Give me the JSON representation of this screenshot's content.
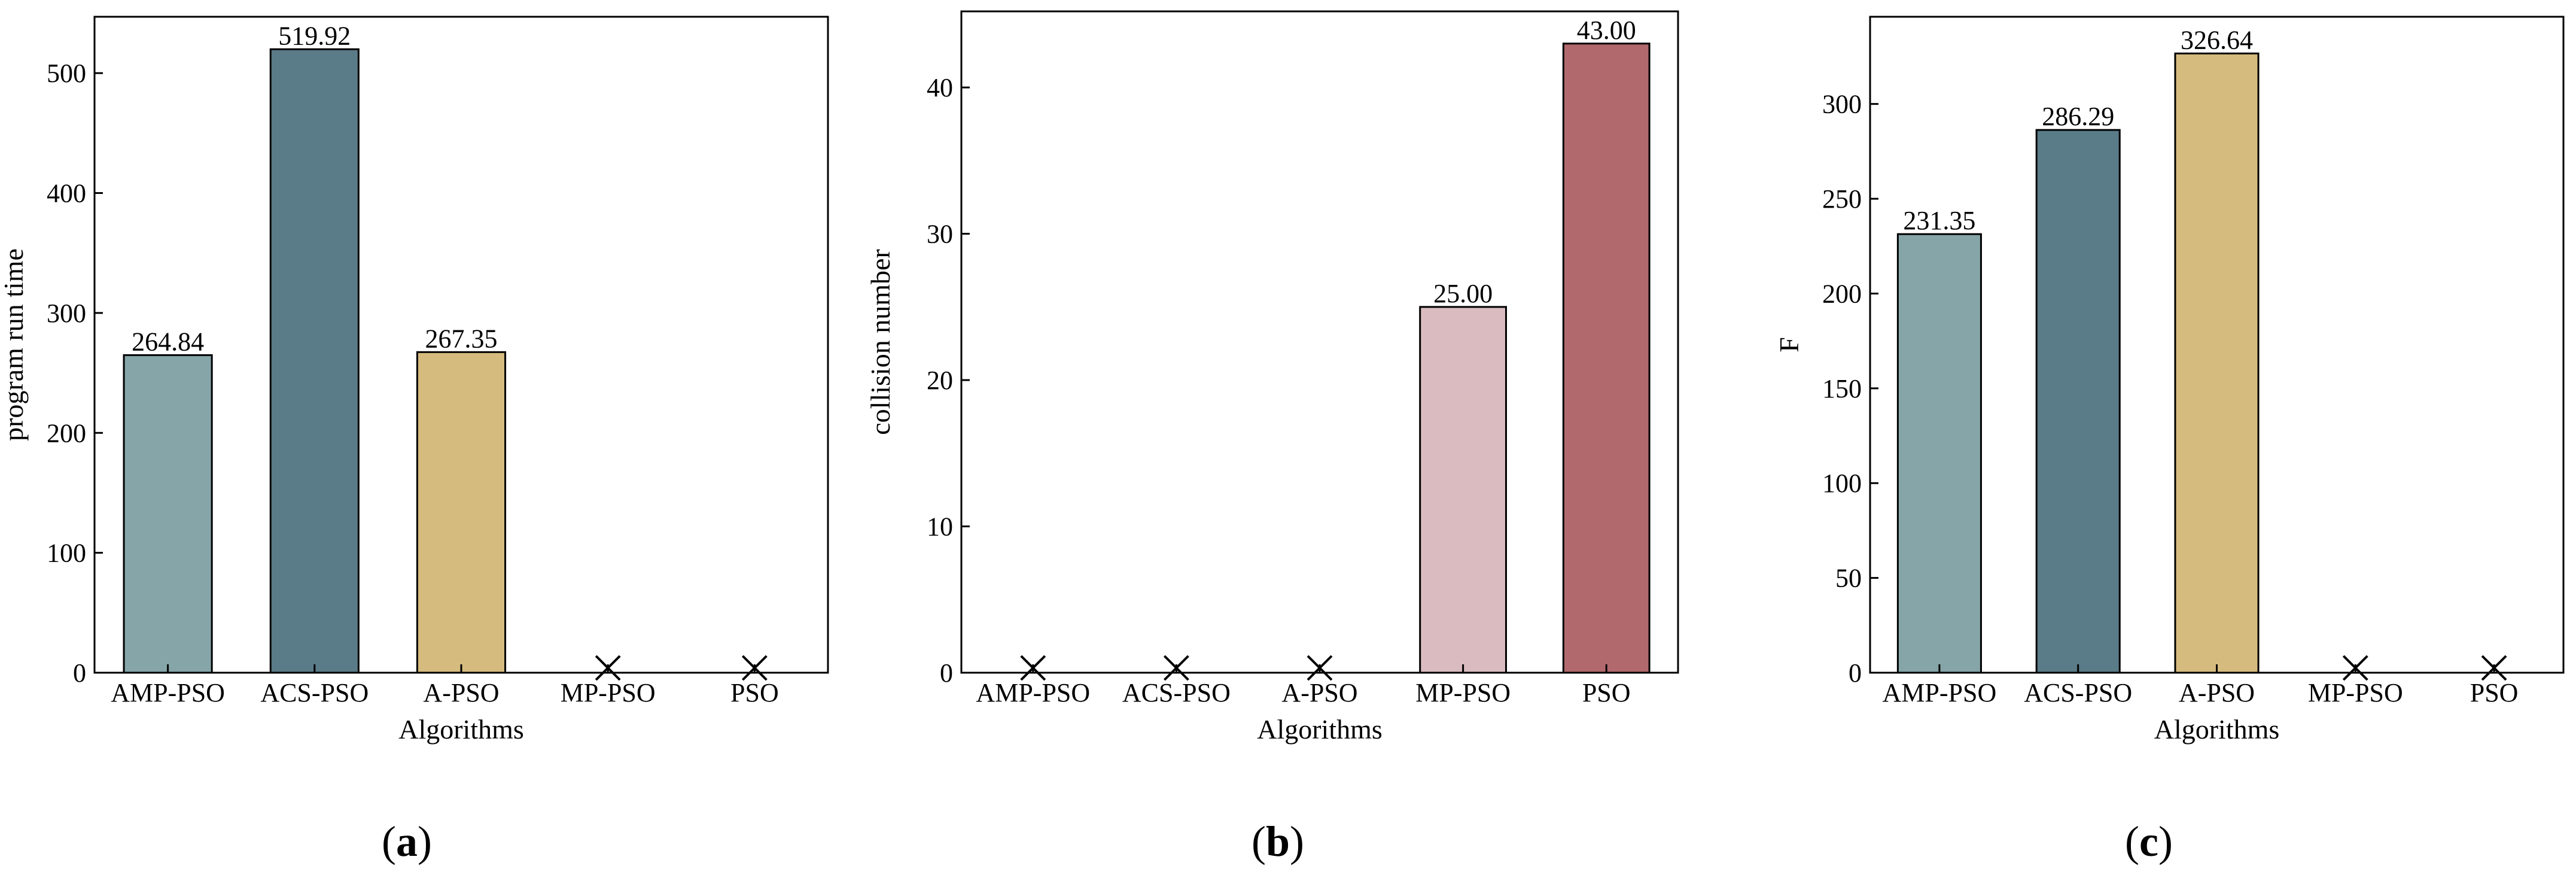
{
  "chart_data": [
    {
      "type": "bar",
      "panel_label": "a",
      "categories": [
        "AMP-PSO",
        "ACS-PSO",
        "A-PSO",
        "MP-PSO",
        "PSO"
      ],
      "values": [
        264.84,
        519.92,
        267.35,
        null,
        null
      ],
      "value_labels": [
        "264.84",
        "519.92",
        "267.35",
        "",
        ""
      ],
      "missing_marker": [
        false,
        false,
        false,
        true,
        true
      ],
      "colors": [
        "#85a5a8",
        "#5a7b88",
        "#d6bb7f",
        null,
        null
      ],
      "xlabel": "Algorithms",
      "ylabel": "program run time",
      "ylim": [
        0,
        547
      ],
      "yticks": [
        0,
        100,
        200,
        300,
        400,
        500
      ],
      "grid": false
    },
    {
      "type": "bar",
      "panel_label": "b",
      "categories": [
        "AMP-PSO",
        "ACS-PSO",
        "A-PSO",
        "MP-PSO",
        "PSO"
      ],
      "values": [
        null,
        null,
        null,
        25.0,
        43.0
      ],
      "value_labels": [
        "",
        "",
        "",
        "25.00",
        "43.00"
      ],
      "missing_marker": [
        true,
        true,
        true,
        false,
        false
      ],
      "colors": [
        null,
        null,
        null,
        "#d9bbc0",
        "#b2696d"
      ],
      "xlabel": "Algorithms",
      "ylabel": "collision number",
      "ylim": [
        0,
        45.2
      ],
      "yticks": [
        0,
        10,
        20,
        30,
        40
      ],
      "grid": false
    },
    {
      "type": "bar",
      "panel_label": "c",
      "categories": [
        "AMP-PSO",
        "ACS-PSO",
        "A-PSO",
        "MP-PSO",
        "PSO"
      ],
      "values": [
        231.35,
        286.29,
        326.64,
        null,
        null
      ],
      "value_labels": [
        "231.35",
        "286.29",
        "326.64",
        "",
        ""
      ],
      "missing_marker": [
        false,
        false,
        false,
        true,
        true
      ],
      "colors": [
        "#85a5a8",
        "#5a7b88",
        "#d6bb7f",
        null,
        null
      ],
      "xlabel": "Algorithms",
      "ylabel": "F",
      "ylim": [
        0,
        346
      ],
      "yticks": [
        0,
        50,
        100,
        150,
        200,
        250,
        300
      ],
      "grid": false
    }
  ]
}
